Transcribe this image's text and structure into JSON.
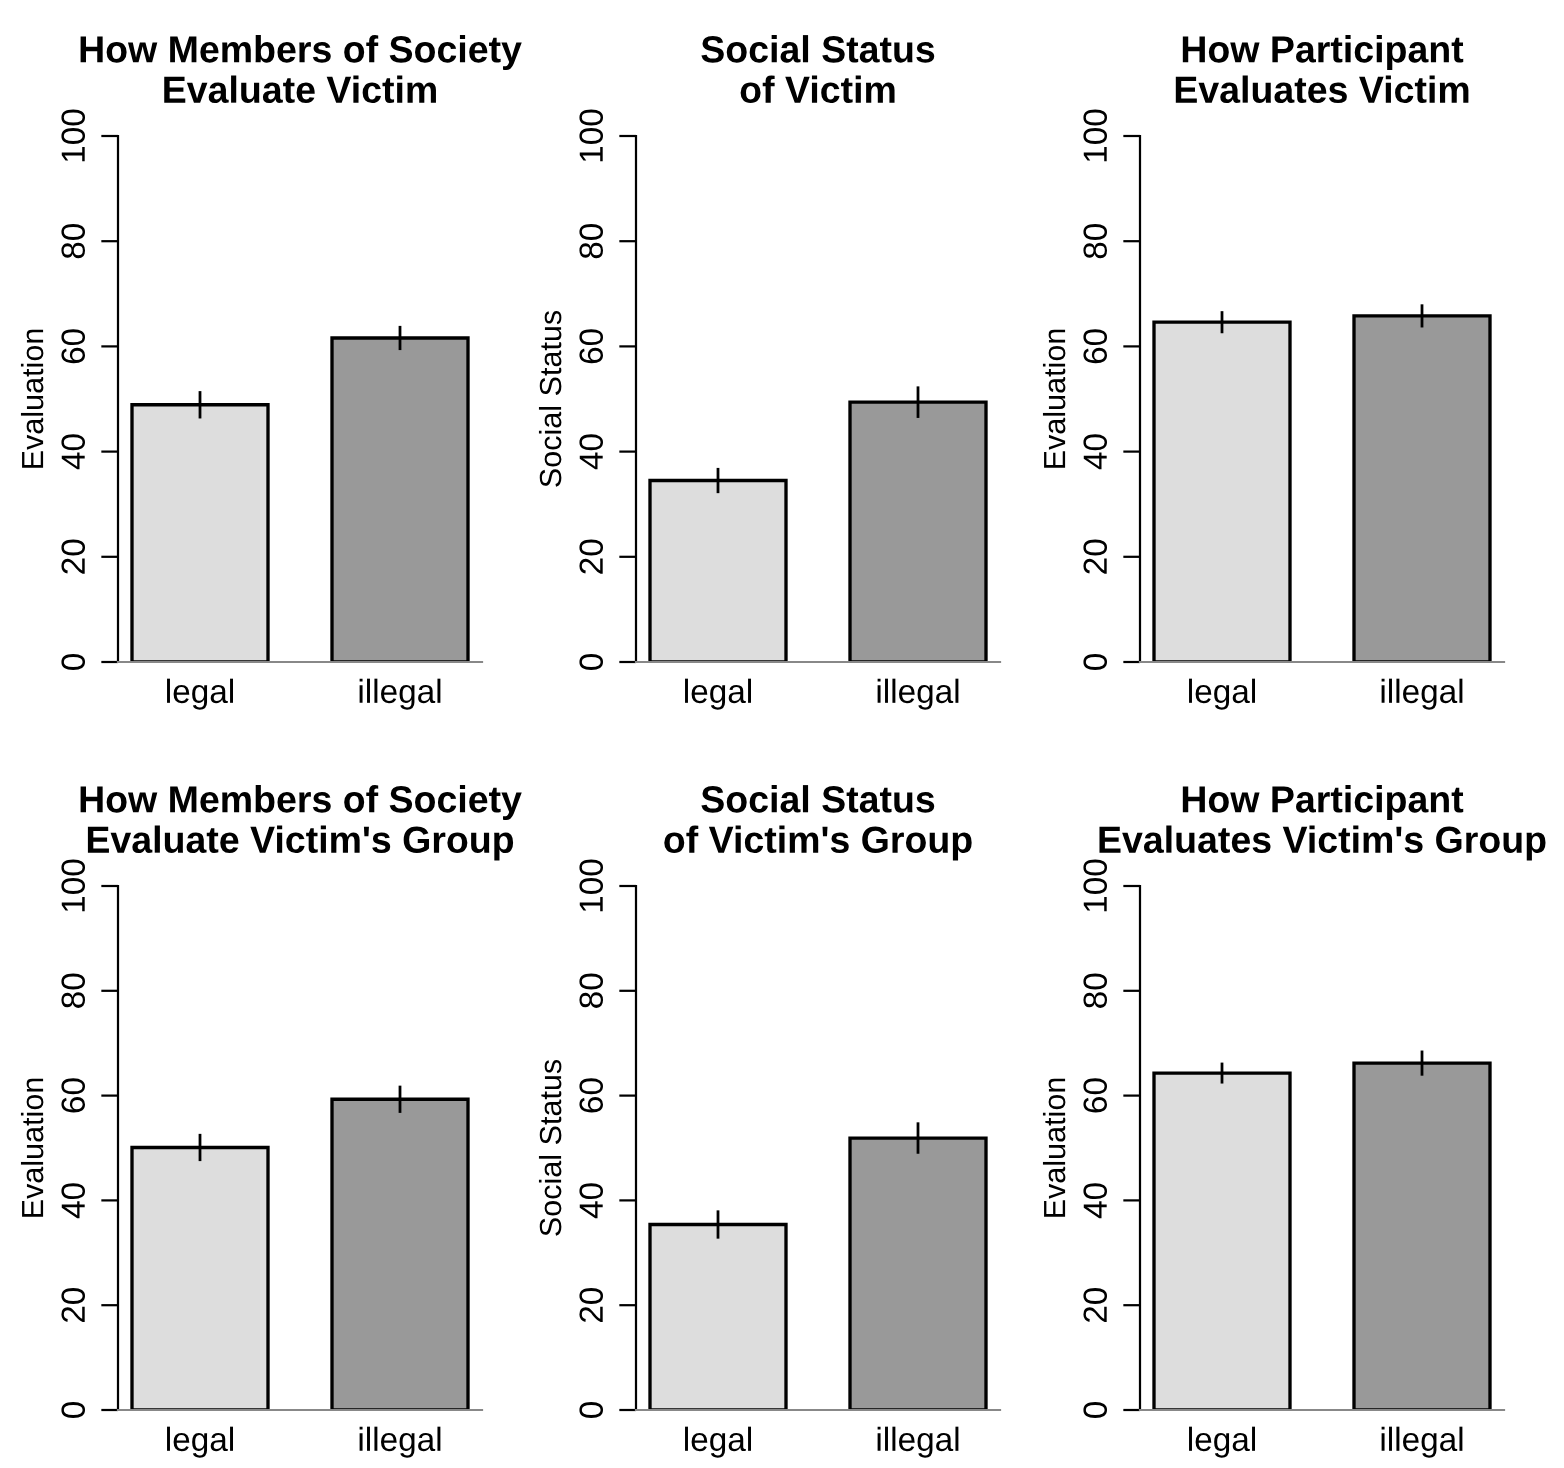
{
  "chart_data": [
    {
      "type": "bar",
      "title": "How Members of Society\nEvaluate Victim",
      "ylabel": "Evaluation",
      "categories": [
        "legal",
        "illegal"
      ],
      "values": [
        48.9,
        61.6
      ],
      "errors": [
        2.6,
        2.3
      ],
      "colors": [
        "#dddddd",
        "#999999"
      ],
      "ylim": [
        0,
        100
      ],
      "yticks": [
        0,
        20,
        40,
        60,
        80,
        100
      ],
      "grid": false,
      "legend": false
    },
    {
      "type": "bar",
      "title": "Social Status\nof Victim",
      "ylabel": "Social Status",
      "categories": [
        "legal",
        "illegal"
      ],
      "values": [
        34.5,
        49.4
      ],
      "errors": [
        2.4,
        3.0
      ],
      "colors": [
        "#dddddd",
        "#999999"
      ],
      "ylim": [
        0,
        100
      ],
      "yticks": [
        0,
        20,
        40,
        60,
        80,
        100
      ],
      "grid": false,
      "legend": false
    },
    {
      "type": "bar",
      "title": "How Participant\nEvaluates Victim",
      "ylabel": "Evaluation",
      "categories": [
        "legal",
        "illegal"
      ],
      "values": [
        64.6,
        65.8
      ],
      "errors": [
        2.1,
        2.2
      ],
      "colors": [
        "#dddddd",
        "#999999"
      ],
      "ylim": [
        0,
        100
      ],
      "yticks": [
        0,
        20,
        40,
        60,
        80,
        100
      ],
      "grid": false,
      "legend": false
    },
    {
      "type": "bar",
      "title": "How Members of Society\nEvaluate Victim's Group",
      "ylabel": "Evaluation",
      "categories": [
        "legal",
        "illegal"
      ],
      "values": [
        50.1,
        59.3
      ],
      "errors": [
        2.6,
        2.6
      ],
      "colors": [
        "#dddddd",
        "#999999"
      ],
      "ylim": [
        0,
        100
      ],
      "yticks": [
        0,
        20,
        40,
        60,
        80,
        100
      ],
      "grid": false,
      "legend": false
    },
    {
      "type": "bar",
      "title": "Social Status\nof Victim's Group",
      "ylabel": "Social Status",
      "categories": [
        "legal",
        "illegal"
      ],
      "values": [
        35.4,
        51.9
      ],
      "errors": [
        2.7,
        3.0
      ],
      "colors": [
        "#dddddd",
        "#999999"
      ],
      "ylim": [
        0,
        100
      ],
      "yticks": [
        0,
        20,
        40,
        60,
        80,
        100
      ],
      "grid": false,
      "legend": false
    },
    {
      "type": "bar",
      "title": "How Participant\nEvaluates Victim's Group",
      "ylabel": "Evaluation",
      "categories": [
        "legal",
        "illegal"
      ],
      "values": [
        64.3,
        66.2
      ],
      "errors": [
        2.0,
        2.4
      ],
      "colors": [
        "#dddddd",
        "#999999"
      ],
      "ylim": [
        0,
        100
      ],
      "yticks": [
        0,
        20,
        40,
        60,
        80,
        100
      ],
      "grid": false,
      "legend": false
    }
  ]
}
